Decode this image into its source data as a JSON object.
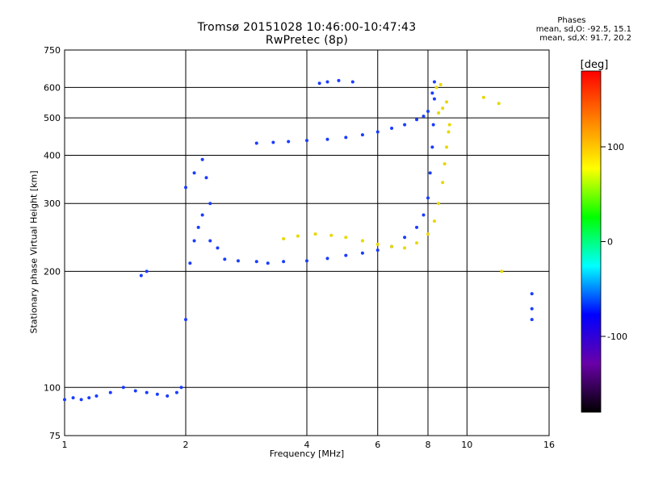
{
  "chart_data": {
    "type": "scatter",
    "title": "Tromsø 20151028 10:46:00-10:47:43",
    "subtitle": "RwPretec (8p)",
    "xlabel": "Frequency [MHz]",
    "ylabel": "Stationary phase Virtual Height [km]",
    "x_scale": "log",
    "y_scale": "log",
    "xlim": [
      1,
      16
    ],
    "ylim": [
      75,
      750
    ],
    "x_ticks": [
      1,
      2,
      4,
      6,
      8,
      10,
      16
    ],
    "x_tick_labels": [
      "1",
      "2",
      "4",
      "6",
      "8",
      "10",
      "16"
    ],
    "y_ticks": [
      75,
      100,
      200,
      300,
      400,
      500,
      600,
      750
    ],
    "y_tick_labels": [
      "75",
      "100",
      "200",
      "300",
      "400",
      "500",
      "600",
      "750"
    ],
    "grid": true,
    "phase_info": {
      "title": "Phases",
      "line_o": "mean, sd,O: -92.5, 15.1",
      "line_x": "mean, sd,X:  91.7, 20.2"
    },
    "colorbar": {
      "label": "[deg]",
      "range": [
        -180,
        180
      ],
      "ticks": [
        100,
        0,
        -100
      ],
      "tick_labels": [
        "100",
        "0",
        "-100"
      ],
      "colors": [
        "#000000",
        "#6a00a8",
        "#0000ff",
        "#00ffff",
        "#00ff00",
        "#ffff00",
        "#ff8000",
        "#ff0000"
      ]
    },
    "series": [
      {
        "id": "o",
        "color": "#1a3cff",
        "x": [
          1.0,
          1.05,
          1.1,
          1.15,
          1.2,
          1.3,
          1.4,
          1.5,
          1.6,
          1.7,
          1.8,
          1.9,
          1.95,
          2.0,
          2.05,
          2.1,
          2.15,
          2.2,
          2.3,
          2.4,
          2.5,
          2.7,
          3.0,
          3.2,
          3.5,
          4.0,
          4.5,
          5.0,
          5.5,
          6.0,
          6.5,
          7.0,
          7.5,
          7.8,
          8.0,
          8.1,
          8.2,
          8.25,
          8.3,
          3.0,
          3.3,
          3.6,
          4.0,
          4.5,
          5.0,
          5.5,
          6.0,
          6.5,
          7.0,
          7.5,
          7.8,
          8.0,
          8.2,
          8.3,
          4.3,
          4.5,
          4.8,
          5.2,
          1.55,
          1.6,
          2.0,
          2.1,
          2.2,
          2.25,
          2.3,
          14.5,
          14.5,
          14.5
        ],
        "y": [
          93,
          94,
          93,
          94,
          95,
          97,
          100,
          98,
          97,
          96,
          95,
          97,
          100,
          150,
          210,
          240,
          260,
          280,
          240,
          230,
          215,
          213,
          212,
          210,
          212,
          213,
          216,
          220,
          223,
          227,
          232,
          245,
          260,
          280,
          310,
          360,
          420,
          480,
          560,
          430,
          432,
          434,
          437,
          440,
          445,
          452,
          460,
          470,
          480,
          495,
          505,
          520,
          580,
          620,
          615,
          620,
          625,
          620,
          195,
          200,
          330,
          360,
          390,
          350,
          300,
          175,
          160,
          150
        ]
      },
      {
        "id": "x",
        "color": "#e8d800",
        "x": [
          3.5,
          3.8,
          4.2,
          4.6,
          5.0,
          5.5,
          6.0,
          6.5,
          7.0,
          7.5,
          8.0,
          8.3,
          8.5,
          8.7,
          8.8,
          8.9,
          9.0,
          9.05,
          8.5,
          8.7,
          8.9,
          8.4,
          8.6,
          11.0,
          12.0,
          12.2
        ],
        "y": [
          243,
          247,
          250,
          248,
          245,
          240,
          235,
          232,
          230,
          237,
          250,
          270,
          300,
          340,
          380,
          420,
          460,
          480,
          515,
          530,
          550,
          600,
          610,
          565,
          545,
          200
        ]
      }
    ]
  }
}
